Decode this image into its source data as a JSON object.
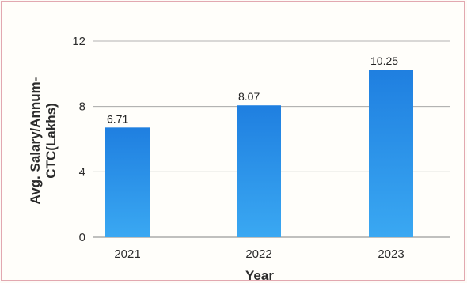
{
  "chart_data": {
    "type": "bar",
    "categories": [
      "2021",
      "2022",
      "2023"
    ],
    "values": [
      6.71,
      8.07,
      10.25
    ],
    "data_labels": [
      "6.71",
      "8.07",
      "10.25"
    ],
    "title": "",
    "xlabel": "Year",
    "ylabel_line1": "Avg. Salary/Annum-",
    "ylabel_line2": "CTC(Lakhs)",
    "ylim": [
      0,
      12
    ],
    "yticks": [
      0,
      4,
      8,
      12
    ],
    "ytick_labels": [
      "0",
      "4",
      "8",
      "12"
    ],
    "grid": true,
    "legend": "none",
    "colors": {
      "bar_top": "#1f7fe0",
      "bar_bottom": "#3aa8f2",
      "grid": "#9a9a9a",
      "axis": "#9a9a9a"
    }
  }
}
